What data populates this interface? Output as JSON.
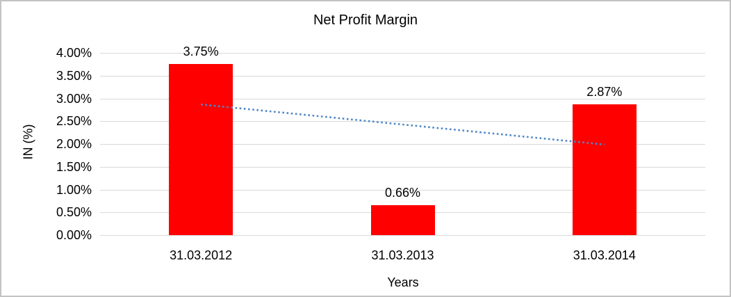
{
  "chart_data": {
    "type": "bar",
    "title": "Net Profit Margin",
    "xlabel": "Years",
    "ylabel": "IN (%)",
    "categories": [
      "31.03.2012",
      "31.03.2013",
      "31.03.2014"
    ],
    "values": [
      3.75,
      0.66,
      2.87
    ],
    "data_labels": [
      "3.75%",
      "0.66%",
      "2.87%"
    ],
    "ylim": [
      0,
      4
    ],
    "ytick_step": 0.5,
    "ytick_labels": [
      "0.00%",
      "0.50%",
      "1.00%",
      "1.50%",
      "2.00%",
      "2.50%",
      "3.00%",
      "3.50%",
      "4.00%"
    ],
    "grid": true,
    "legend_position": "none",
    "bar_color": "#ff0000",
    "gridline_color": "#d9d9d9",
    "text_color": "#000000",
    "trendline": {
      "type": "linear",
      "style": "dotted",
      "color": "#4f86c6",
      "endpoint_values": [
        2.867,
        1.987
      ]
    }
  }
}
